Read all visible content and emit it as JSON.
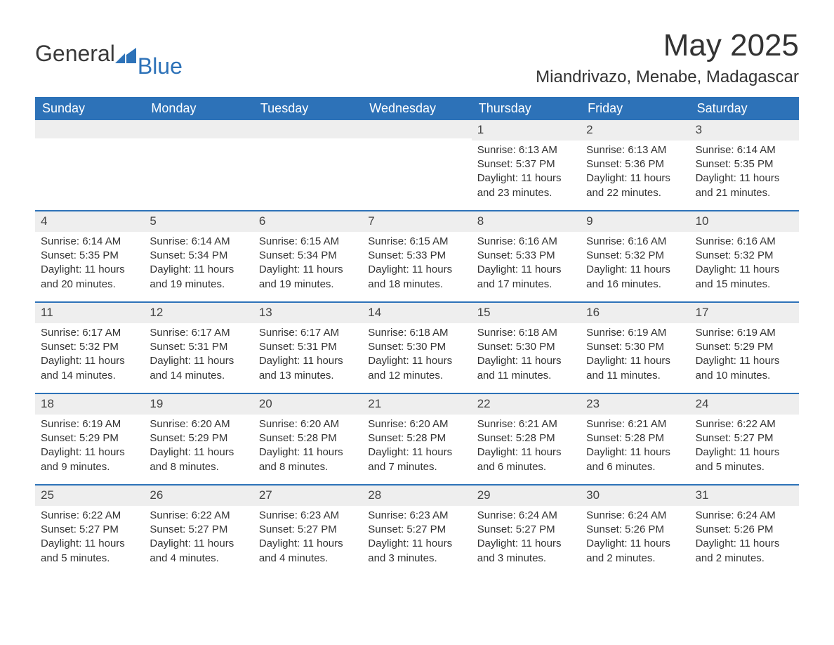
{
  "brand": {
    "part1": "General",
    "part2": "Blue",
    "logo_color": "#2d72b8"
  },
  "title": "May 2025",
  "location": "Miandrivazo, Menabe, Madagascar",
  "colors": {
    "header_bg": "#2d72b8",
    "header_text": "#ffffff",
    "daynum_bg": "#eeeeee",
    "row_border": "#2d72b8",
    "body_text": "#333333",
    "page_bg": "#ffffff"
  },
  "typography": {
    "title_fontsize": 44,
    "location_fontsize": 24,
    "dow_fontsize": 18,
    "cell_fontsize": 15
  },
  "days_of_week": [
    "Sunday",
    "Monday",
    "Tuesday",
    "Wednesday",
    "Thursday",
    "Friday",
    "Saturday"
  ],
  "labels": {
    "sunrise": "Sunrise: ",
    "sunset": "Sunset: ",
    "daylight": "Daylight: "
  },
  "weeks": [
    [
      null,
      null,
      null,
      null,
      {
        "n": "1",
        "sr": "6:13 AM",
        "ss": "5:37 PM",
        "dl": "11 hours and 23 minutes."
      },
      {
        "n": "2",
        "sr": "6:13 AM",
        "ss": "5:36 PM",
        "dl": "11 hours and 22 minutes."
      },
      {
        "n": "3",
        "sr": "6:14 AM",
        "ss": "5:35 PM",
        "dl": "11 hours and 21 minutes."
      }
    ],
    [
      {
        "n": "4",
        "sr": "6:14 AM",
        "ss": "5:35 PM",
        "dl": "11 hours and 20 minutes."
      },
      {
        "n": "5",
        "sr": "6:14 AM",
        "ss": "5:34 PM",
        "dl": "11 hours and 19 minutes."
      },
      {
        "n": "6",
        "sr": "6:15 AM",
        "ss": "5:34 PM",
        "dl": "11 hours and 19 minutes."
      },
      {
        "n": "7",
        "sr": "6:15 AM",
        "ss": "5:33 PM",
        "dl": "11 hours and 18 minutes."
      },
      {
        "n": "8",
        "sr": "6:16 AM",
        "ss": "5:33 PM",
        "dl": "11 hours and 17 minutes."
      },
      {
        "n": "9",
        "sr": "6:16 AM",
        "ss": "5:32 PM",
        "dl": "11 hours and 16 minutes."
      },
      {
        "n": "10",
        "sr": "6:16 AM",
        "ss": "5:32 PM",
        "dl": "11 hours and 15 minutes."
      }
    ],
    [
      {
        "n": "11",
        "sr": "6:17 AM",
        "ss": "5:32 PM",
        "dl": "11 hours and 14 minutes."
      },
      {
        "n": "12",
        "sr": "6:17 AM",
        "ss": "5:31 PM",
        "dl": "11 hours and 14 minutes."
      },
      {
        "n": "13",
        "sr": "6:17 AM",
        "ss": "5:31 PM",
        "dl": "11 hours and 13 minutes."
      },
      {
        "n": "14",
        "sr": "6:18 AM",
        "ss": "5:30 PM",
        "dl": "11 hours and 12 minutes."
      },
      {
        "n": "15",
        "sr": "6:18 AM",
        "ss": "5:30 PM",
        "dl": "11 hours and 11 minutes."
      },
      {
        "n": "16",
        "sr": "6:19 AM",
        "ss": "5:30 PM",
        "dl": "11 hours and 11 minutes."
      },
      {
        "n": "17",
        "sr": "6:19 AM",
        "ss": "5:29 PM",
        "dl": "11 hours and 10 minutes."
      }
    ],
    [
      {
        "n": "18",
        "sr": "6:19 AM",
        "ss": "5:29 PM",
        "dl": "11 hours and 9 minutes."
      },
      {
        "n": "19",
        "sr": "6:20 AM",
        "ss": "5:29 PM",
        "dl": "11 hours and 8 minutes."
      },
      {
        "n": "20",
        "sr": "6:20 AM",
        "ss": "5:28 PM",
        "dl": "11 hours and 8 minutes."
      },
      {
        "n": "21",
        "sr": "6:20 AM",
        "ss": "5:28 PM",
        "dl": "11 hours and 7 minutes."
      },
      {
        "n": "22",
        "sr": "6:21 AM",
        "ss": "5:28 PM",
        "dl": "11 hours and 6 minutes."
      },
      {
        "n": "23",
        "sr": "6:21 AM",
        "ss": "5:28 PM",
        "dl": "11 hours and 6 minutes."
      },
      {
        "n": "24",
        "sr": "6:22 AM",
        "ss": "5:27 PM",
        "dl": "11 hours and 5 minutes."
      }
    ],
    [
      {
        "n": "25",
        "sr": "6:22 AM",
        "ss": "5:27 PM",
        "dl": "11 hours and 5 minutes."
      },
      {
        "n": "26",
        "sr": "6:22 AM",
        "ss": "5:27 PM",
        "dl": "11 hours and 4 minutes."
      },
      {
        "n": "27",
        "sr": "6:23 AM",
        "ss": "5:27 PM",
        "dl": "11 hours and 4 minutes."
      },
      {
        "n": "28",
        "sr": "6:23 AM",
        "ss": "5:27 PM",
        "dl": "11 hours and 3 minutes."
      },
      {
        "n": "29",
        "sr": "6:24 AM",
        "ss": "5:27 PM",
        "dl": "11 hours and 3 minutes."
      },
      {
        "n": "30",
        "sr": "6:24 AM",
        "ss": "5:26 PM",
        "dl": "11 hours and 2 minutes."
      },
      {
        "n": "31",
        "sr": "6:24 AM",
        "ss": "5:26 PM",
        "dl": "11 hours and 2 minutes."
      }
    ]
  ]
}
